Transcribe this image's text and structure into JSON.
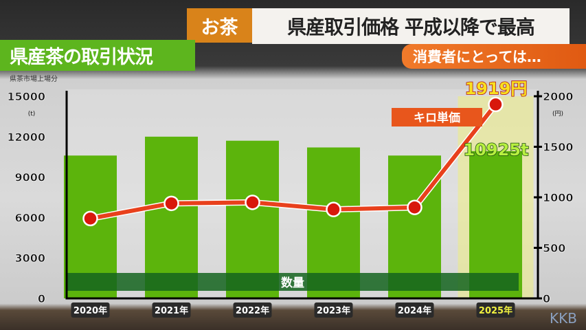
{
  "header": {
    "tag": "お茶",
    "headline": "県産取引価格 平成以降で最高",
    "subtitle": "消費者にとっては…",
    "chart_title": "県産茶の取引状況",
    "source": "県茶市場上場分",
    "logo": "KKB"
  },
  "chart_data": {
    "type": "bar+line",
    "categories": [
      "2020年",
      "2021年",
      "2022年",
      "2023年",
      "2024年",
      "2025年"
    ],
    "highlight_category": "2025年",
    "series": [
      {
        "name": "数量",
        "type": "bar",
        "axis": "left",
        "unit": "t",
        "values": [
          10600,
          12000,
          11700,
          11200,
          10600,
          10925
        ],
        "color": "#5cb40c"
      },
      {
        "name": "キロ単価",
        "type": "line",
        "axis": "right",
        "unit": "円",
        "values": [
          790,
          940,
          950,
          880,
          900,
          1919
        ],
        "color": "#e8401c"
      }
    ],
    "left_axis": {
      "unit": "(t)",
      "ylim": [
        0,
        15000
      ],
      "ticks": [
        "0",
        "3000",
        "6000",
        "9000",
        "12000",
        "15000"
      ]
    },
    "right_axis": {
      "unit": "(円)",
      "ylim": [
        0,
        2000
      ],
      "ticks": [
        "0",
        "500",
        "1000",
        "1500",
        "2000"
      ]
    },
    "annotations": {
      "price_label": "1919円",
      "volume_label": "10925t"
    },
    "grid": false
  }
}
